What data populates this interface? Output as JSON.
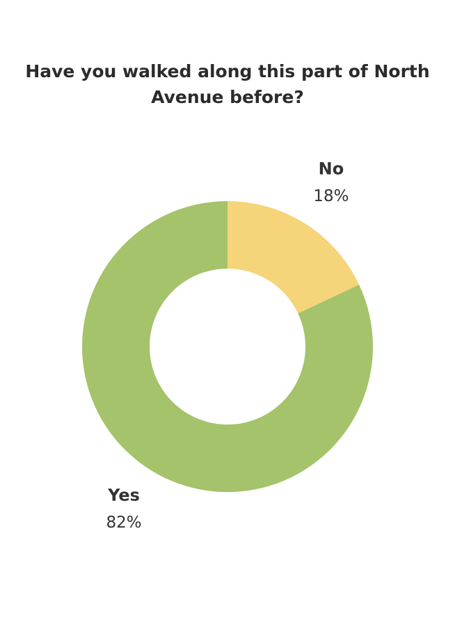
{
  "chart_data": {
    "type": "donut",
    "title": "Have you walked along this part of North Avenue before?",
    "categories": [
      "No",
      "Yes"
    ],
    "values": [
      18,
      82
    ],
    "value_labels": [
      "18%",
      "82%"
    ],
    "colors": [
      "#f5d47a",
      "#a4c36a"
    ]
  }
}
